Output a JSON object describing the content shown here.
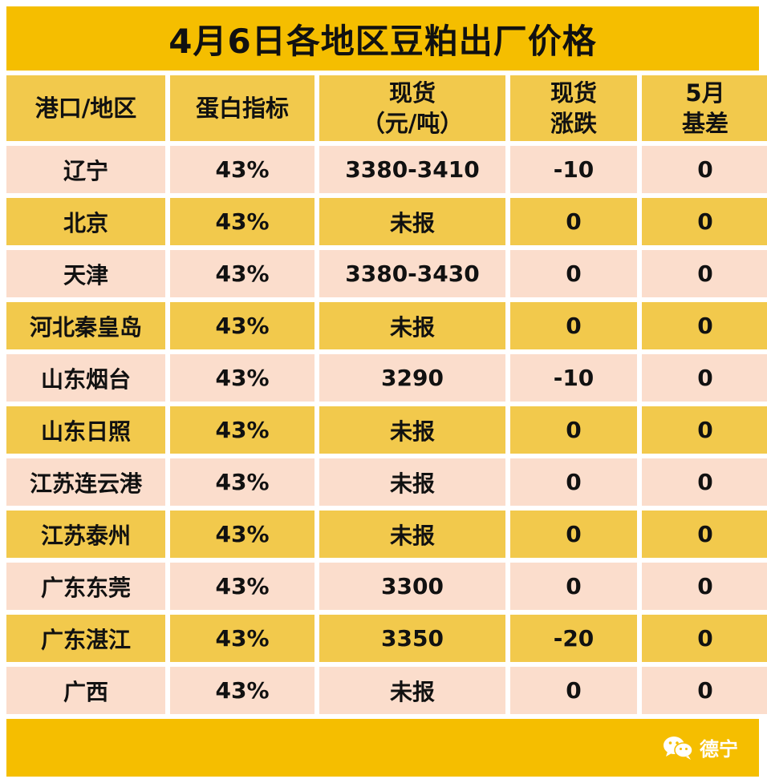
{
  "title": "4月6日各地区豆粕出厂价格",
  "headers": {
    "region": "港口/地区",
    "protein": "蛋白指标",
    "spot_line1": "现货",
    "spot_line2": "（元/吨）",
    "change_line1": "现货",
    "change_line2": "涨跌",
    "basis_line1": "5月",
    "basis_line2": "基差"
  },
  "rows": [
    {
      "region": "辽宁",
      "protein": "43%",
      "spot": "3380-3410",
      "change": "-10",
      "basis": "0"
    },
    {
      "region": "北京",
      "protein": "43%",
      "spot": "未报",
      "change": "0",
      "basis": "0"
    },
    {
      "region": "天津",
      "protein": "43%",
      "spot": "3380-3430",
      "change": "0",
      "basis": "0"
    },
    {
      "region": "河北秦皇岛",
      "protein": "43%",
      "spot": "未报",
      "change": "0",
      "basis": "0"
    },
    {
      "region": "山东烟台",
      "protein": "43%",
      "spot": "3290",
      "change": "-10",
      "basis": "0"
    },
    {
      "region": "山东日照",
      "protein": "43%",
      "spot": "未报",
      "change": "0",
      "basis": "0"
    },
    {
      "region": "江苏连云港",
      "protein": "43%",
      "spot": "未报",
      "change": "0",
      "basis": "0"
    },
    {
      "region": "江苏泰州",
      "protein": "43%",
      "spot": "未报",
      "change": "0",
      "basis": "0"
    },
    {
      "region": "广东东莞",
      "protein": "43%",
      "spot": "3300",
      "change": "0",
      "basis": "0"
    },
    {
      "region": "广东湛江",
      "protein": "43%",
      "spot": "3350",
      "change": "-20",
      "basis": "0"
    },
    {
      "region": "广西",
      "protein": "43%",
      "spot": "未报",
      "change": "0",
      "basis": "0"
    }
  ],
  "footer": {
    "brand_text": "德宁",
    "brand_icon": "wechat-icon"
  },
  "colors": {
    "title_bg": "#F5BE00",
    "header_bg": "#F2C94C",
    "row_light": "#FBDDCC",
    "row_dark": "#F2C94C",
    "down": "#2BAE3E"
  }
}
